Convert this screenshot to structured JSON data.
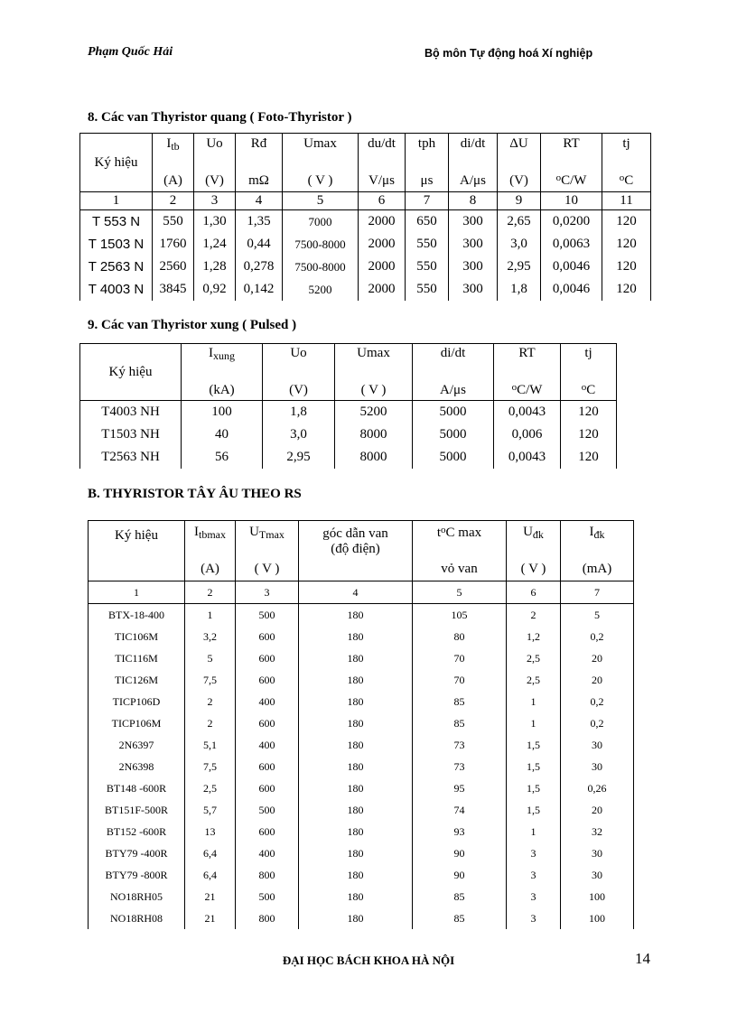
{
  "header": {
    "author": "Phạm Quốc Hải",
    "department": "Bộ môn Tự động hoá Xí nghiệp"
  },
  "section8": {
    "title": "8.   Các van Thyristor quang ( Foto-Thyristor )",
    "headers": [
      [
        "Ký hiệu",
        ""
      ],
      [
        "I",
        "tb",
        "(A)"
      ],
      [
        "Uo",
        "(V)"
      ],
      [
        "Rđ",
        "mΩ"
      ],
      [
        "Umax",
        "( V )"
      ],
      [
        "du/dt",
        "V/μs"
      ],
      [
        "tph",
        "μs"
      ],
      [
        "di/dt",
        "A/μs"
      ],
      [
        "ΔU",
        "(V)"
      ],
      [
        "RT",
        "o",
        "C/W"
      ],
      [
        "tj",
        "o",
        "C"
      ]
    ],
    "numbers": [
      "1",
      "2",
      "3",
      "4",
      "5",
      "6",
      "7",
      "8",
      "9",
      "10",
      "11"
    ],
    "rows": [
      [
        "T 553 N",
        "550",
        "1,30",
        "1,35",
        "7000",
        "2000",
        "650",
        "300",
        "2,65",
        "0,0200",
        "120"
      ],
      [
        "T 1503 N",
        "1760",
        "1,24",
        "0,44",
        "7500-8000",
        "2000",
        "550",
        "300",
        "3,0",
        "0,0063",
        "120"
      ],
      [
        "T 2563 N",
        "2560",
        "1,28",
        "0,278",
        "7500-8000",
        "2000",
        "550",
        "300",
        "2,95",
        "0,0046",
        "120"
      ],
      [
        "T 4003 N",
        "3845",
        "0,92",
        "0,142",
        "5200",
        "2000",
        "550",
        "300",
        "1,8",
        "0,0046",
        "120"
      ]
    ]
  },
  "section9": {
    "title": "9. Các van Thyristor xung ( Pulsed )",
    "headers": {
      "kyhieu": "Ký hiệu",
      "ixung_main": "I",
      "ixung_sub": "xung",
      "ixung_unit": "(kA)",
      "uo": "Uo",
      "uo_unit": "(V)",
      "umax": "Umax",
      "umax_unit": "( V )",
      "didt": "di/dt",
      "didt_unit": "A/μs",
      "rt": "RT",
      "rt_sup": "o",
      "rt_unit": "C/W",
      "tj": "tj",
      "tj_sup": "o",
      "tj_unit": "C"
    },
    "rows": [
      [
        "T4003 NH",
        "100",
        "1,8",
        "5200",
        "5000",
        "0,0043",
        "120"
      ],
      [
        "T1503 NH",
        "40",
        "3,0",
        "8000",
        "5000",
        "0,006",
        "120"
      ],
      [
        "T2563 NH",
        "56",
        "2,95",
        "8000",
        "5000",
        "0,0043",
        "120"
      ]
    ]
  },
  "sectionB": {
    "title": "B.  THYRISTOR TÂY ÂU THEO RS",
    "headers": {
      "kyhieu": "Ký hiệu",
      "itb_main": "I",
      "itb_sub": "tbmax",
      "itb_unit": "(A)",
      "ut_main": "U",
      "ut_sub": "Tmax",
      "ut_unit": "( V )",
      "goc": "góc dẫn   van",
      "goc2": "(độ điện)",
      "t_main": "t",
      "t_sup": "o",
      "t_rest": "C max",
      "t_unit": "vỏ van",
      "udk_main": "U",
      "udk_sub": "đk",
      "udk_unit": "( V )",
      "idk_main": "I",
      "idk_sub": "đk",
      "idk_unit": "(mA)"
    },
    "numbers": [
      "1",
      "2",
      "3",
      "4",
      "5",
      "6",
      "7"
    ],
    "rows": [
      [
        "BTX-18-400",
        "1",
        "500",
        "180",
        "105",
        "2",
        "5"
      ],
      [
        "TIC106M",
        "3,2",
        "600",
        "180",
        "80",
        "1,2",
        "0,2"
      ],
      [
        "TIC116M",
        "5",
        "600",
        "180",
        "70",
        "2,5",
        "20"
      ],
      [
        "TIC126M",
        "7,5",
        "600",
        "180",
        "70",
        "2,5",
        "20"
      ],
      [
        "TICP106D",
        "2",
        "400",
        "180",
        "85",
        "1",
        "0,2"
      ],
      [
        "TICP106M",
        "2",
        "600",
        "180",
        "85",
        "1",
        "0,2"
      ],
      [
        "2N6397",
        "5,1",
        "400",
        "180",
        "73",
        "1,5",
        "30"
      ],
      [
        "2N6398",
        "7,5",
        "600",
        "180",
        "73",
        "1,5",
        "30"
      ],
      [
        "BT148 -600R",
        "2,5",
        "600",
        "180",
        "95",
        "1,5",
        "0,26"
      ],
      [
        "BT151F-500R",
        "5,7",
        "500",
        "180",
        "74",
        "1,5",
        "20"
      ],
      [
        "BT152 -600R",
        "13",
        "600",
        "180",
        "93",
        "1",
        "32"
      ],
      [
        "BTY79 -400R",
        "6,4",
        "400",
        "180",
        "90",
        "3",
        "30"
      ],
      [
        "BTY79 -800R",
        "6,4",
        "800",
        "180",
        "90",
        "3",
        "30"
      ],
      [
        "NO18RH05",
        "21",
        "500",
        "180",
        "85",
        "3",
        "100"
      ],
      [
        "NO18RH08",
        "21",
        "800",
        "180",
        "85",
        "3",
        "100"
      ]
    ]
  },
  "footer": {
    "university": "ĐẠI HỌC BÁCH KHOA HÀ NỘI",
    "page": "14"
  }
}
